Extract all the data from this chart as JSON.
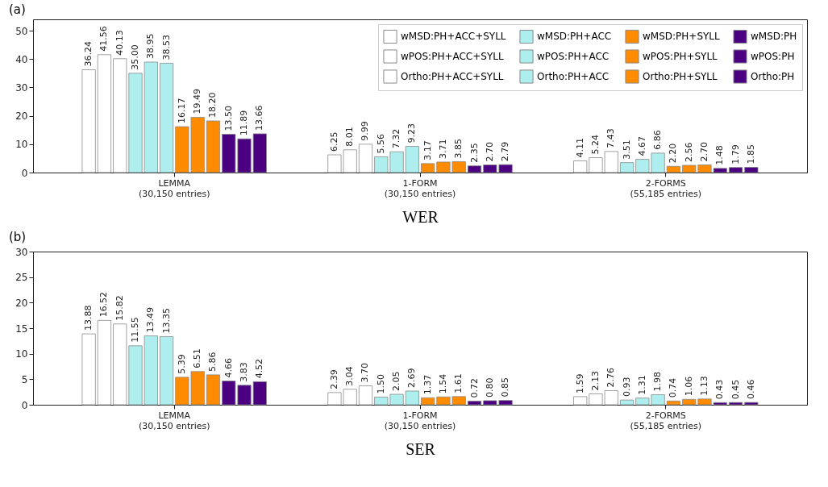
{
  "chart_data": [
    {
      "type": "bar",
      "title": "(a)",
      "xlabel": "WER",
      "categories": [
        "LEMMA\n(30,150 entries)",
        "1-FORM\n(30,150 entries)",
        "2-FORMS\n(55,185 entries)"
      ],
      "ylim": [
        0,
        54
      ],
      "yticks": [
        0,
        10,
        20,
        30,
        40,
        50
      ],
      "grid": false,
      "legend": "top right",
      "series": [
        {
          "name": "wMSD:PH+ACC+SYLL",
          "color": "#ffffff",
          "values": [
            36.24,
            6.25,
            4.11
          ],
          "value_labels": [
            "36.24",
            "6.25",
            "4.11"
          ]
        },
        {
          "name": "wPOS:PH+ACC+SYLL",
          "color": "#ffffff",
          "values": [
            41.56,
            8.01,
            5.24
          ],
          "value_labels": [
            "41.56",
            "8.01",
            "5.24"
          ]
        },
        {
          "name": "Ortho:PH+ACC+SYLL",
          "color": "#ffffff",
          "values": [
            40.13,
            9.99,
            7.43
          ],
          "value_labels": [
            "40.13",
            "9.99",
            "7.43"
          ]
        },
        {
          "name": "wMSD:PH+ACC",
          "color": "#aeeeee",
          "values": [
            35.0,
            5.56,
            3.51
          ],
          "value_labels": [
            "35.00",
            "5.56",
            "3.51"
          ]
        },
        {
          "name": "wPOS:PH+ACC",
          "color": "#aeeeee",
          "values": [
            38.95,
            7.32,
            4.67
          ],
          "value_labels": [
            "38.95",
            "7.32",
            "4.67"
          ]
        },
        {
          "name": "Ortho:PH+ACC",
          "color": "#aeeeee",
          "values": [
            38.53,
            9.23,
            6.86
          ],
          "value_labels": [
            "38.53",
            "9.23",
            "6.86"
          ]
        },
        {
          "name": "wMSD:PH+SYLL",
          "color": "#ff8c00",
          "values": [
            16.17,
            3.17,
            2.2
          ],
          "value_labels": [
            "16.17",
            "3.17",
            "2.20"
          ]
        },
        {
          "name": "wPOS:PH+SYLL",
          "color": "#ff8c00",
          "values": [
            19.49,
            3.71,
            2.56
          ],
          "value_labels": [
            "19.49",
            "3.71",
            "2.56"
          ]
        },
        {
          "name": "Ortho:PH+SYLL",
          "color": "#ff8c00",
          "values": [
            18.2,
            3.85,
            2.7
          ],
          "value_labels": [
            "18.20",
            "3.85",
            "2.70"
          ]
        },
        {
          "name": "wMSD:PH",
          "color": "#4b0082",
          "values": [
            13.5,
            2.35,
            1.48
          ],
          "value_labels": [
            "13.50",
            "2.35",
            "1.48"
          ]
        },
        {
          "name": "wPOS:PH",
          "color": "#4b0082",
          "values": [
            11.89,
            2.7,
            1.79
          ],
          "value_labels": [
            "11.89",
            "2.70",
            "1.79"
          ]
        },
        {
          "name": "Ortho:PH",
          "color": "#4b0082",
          "values": [
            13.66,
            2.79,
            1.85
          ],
          "value_labels": [
            "13.66",
            "2.79",
            "1.85"
          ]
        }
      ]
    },
    {
      "type": "bar",
      "title": "(b)",
      "xlabel": "SER",
      "categories": [
        "LEMMA\n(30,150 entries)",
        "1-FORM\n(30,150 entries)",
        "2-FORMS\n(55,185 entries)"
      ],
      "ylim": [
        0,
        30
      ],
      "yticks": [
        0,
        5,
        10,
        15,
        20,
        25,
        30
      ],
      "grid": false,
      "legend": "top right",
      "series": [
        {
          "name": "wMSD:PH+ACC+SYLL",
          "color": "#ffffff",
          "values": [
            13.88,
            2.39,
            1.59
          ],
          "value_labels": [
            "13.88",
            "2.39",
            "1.59"
          ]
        },
        {
          "name": "wPOS:PH+ACC+SYLL",
          "color": "#ffffff",
          "values": [
            16.52,
            3.04,
            2.13
          ],
          "value_labels": [
            "16.52",
            "3.04",
            "2.13"
          ]
        },
        {
          "name": "Ortho:PH+ACC+SYLL",
          "color": "#ffffff",
          "values": [
            15.82,
            3.7,
            2.76
          ],
          "value_labels": [
            "15.82",
            "3.70",
            "2.76"
          ]
        },
        {
          "name": "wMSD:PH+ACC",
          "color": "#aeeeee",
          "values": [
            11.55,
            1.5,
            0.93
          ],
          "value_labels": [
            "11.55",
            "1.50",
            "0.93"
          ]
        },
        {
          "name": "wPOS:PH+ACC",
          "color": "#aeeeee",
          "values": [
            13.49,
            2.05,
            1.31
          ],
          "value_labels": [
            "13.49",
            "2.05",
            "1.31"
          ]
        },
        {
          "name": "Ortho:PH+ACC",
          "color": "#aeeeee",
          "values": [
            13.35,
            2.69,
            1.98
          ],
          "value_labels": [
            "13.35",
            "2.69",
            "1.98"
          ]
        },
        {
          "name": "wMSD:PH+SYLL",
          "color": "#ff8c00",
          "values": [
            5.39,
            1.37,
            0.74
          ],
          "value_labels": [
            "5.39",
            "1.37",
            "0.74"
          ]
        },
        {
          "name": "wPOS:PH+SYLL",
          "color": "#ff8c00",
          "values": [
            6.51,
            1.54,
            1.06
          ],
          "value_labels": [
            "6.51",
            "1.54",
            "1.06"
          ]
        },
        {
          "name": "Ortho:PH+SYLL",
          "color": "#ff8c00",
          "values": [
            5.86,
            1.61,
            1.13
          ],
          "value_labels": [
            "5.86",
            "1.61",
            "1.13"
          ]
        },
        {
          "name": "wMSD:PH",
          "color": "#4b0082",
          "values": [
            4.66,
            0.72,
            0.43
          ],
          "value_labels": [
            "4.66",
            "0.72",
            "0.43"
          ]
        },
        {
          "name": "wPOS:PH",
          "color": "#4b0082",
          "values": [
            3.83,
            0.8,
            0.45
          ],
          "value_labels": [
            "3.83",
            "0.80",
            "0.45"
          ]
        },
        {
          "name": "Ortho:PH",
          "color": "#4b0082",
          "values": [
            4.52,
            0.85,
            0.46
          ],
          "value_labels": [
            "4.52",
            "0.85",
            "0.46"
          ]
        }
      ]
    }
  ]
}
